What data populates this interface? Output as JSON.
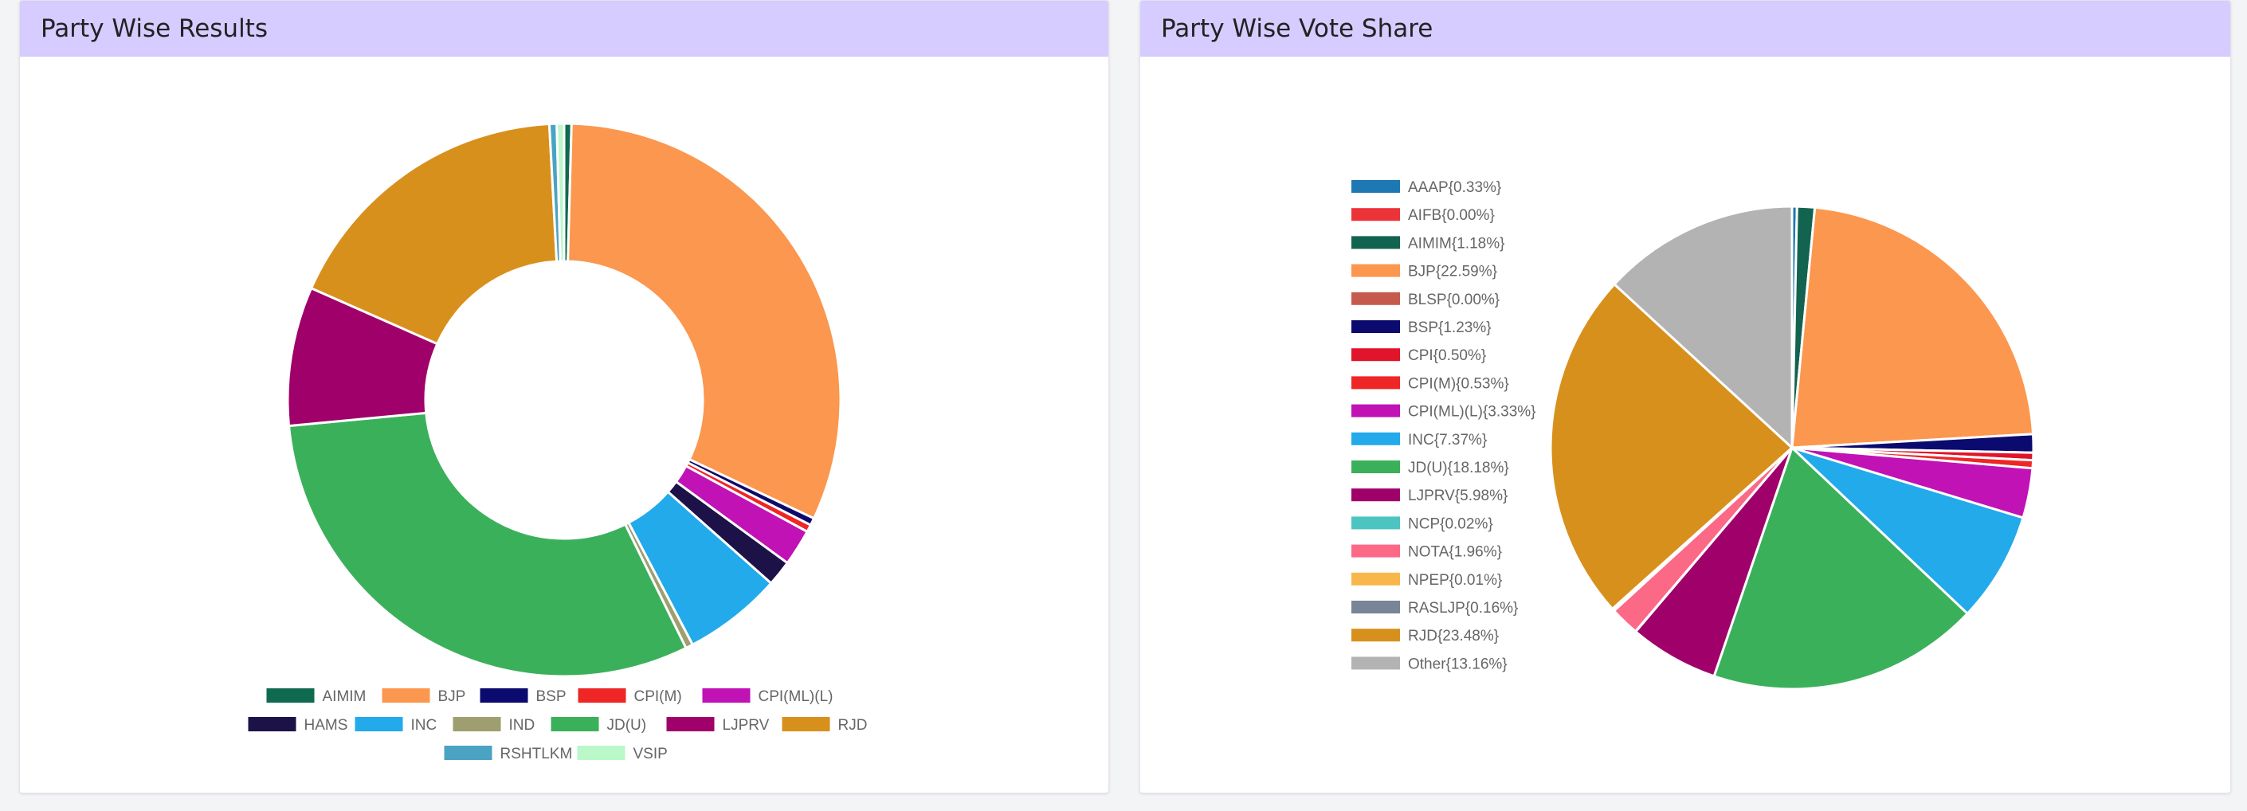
{
  "left_card": {
    "title": "Party Wise Results"
  },
  "right_card": {
    "title": "Party Wise Vote Share"
  },
  "chart_data": [
    {
      "type": "pie",
      "variant": "doughnut",
      "title": "Party Wise Results",
      "legend_position": "bottom",
      "slices": [
        {
          "label": "AIMIM",
          "value": 1,
          "color": "#0f6a50"
        },
        {
          "label": "BJP",
          "value": 74,
          "color": "#fb974f"
        },
        {
          "label": "BSP",
          "value": 1,
          "color": "#0b0a6e"
        },
        {
          "label": "CPI(M)",
          "value": 1,
          "color": "#ee2626"
        },
        {
          "label": "CPI(ML)(L)",
          "value": 5,
          "color": "#c012b5"
        },
        {
          "label": "HAMS",
          "value": 3.5,
          "color": "#1c1248"
        },
        {
          "label": "INC",
          "value": 13.5,
          "color": "#22aaeb"
        },
        {
          "label": "IND",
          "value": 1,
          "color": "#9e9e70"
        },
        {
          "label": "JD(U)",
          "value": 72,
          "color": "#3bb05b"
        },
        {
          "label": "LJPRV",
          "value": 19,
          "color": "#a0006a"
        },
        {
          "label": "RJD",
          "value": 41,
          "color": "#d8901c"
        },
        {
          "label": "RSHTLKM",
          "value": 1,
          "color": "#4ba3c3"
        },
        {
          "label": "VSIP",
          "value": 1,
          "color": "#baf7c9"
        }
      ]
    },
    {
      "type": "pie",
      "title": "Party Wise Vote Share",
      "legend_position": "left",
      "slices": [
        {
          "label": "AAAP",
          "value": 0.33,
          "legend": "AAAP{0.33%}",
          "color": "#1e78b4"
        },
        {
          "label": "AIFB",
          "value": 0.0,
          "legend": "AIFB{0.00%}",
          "color": "#ec3338"
        },
        {
          "label": "AIMIM",
          "value": 1.18,
          "legend": "AIMIM{1.18%}",
          "color": "#12634f"
        },
        {
          "label": "BJP",
          "value": 22.59,
          "legend": "BJP{22.59%}",
          "color": "#fb974f"
        },
        {
          "label": "BLSP",
          "value": 0.0,
          "legend": "BLSP{0.00%}",
          "color": "#c65a4c"
        },
        {
          "label": "BSP",
          "value": 1.23,
          "legend": "BSP{1.23%}",
          "color": "#0b0a6e"
        },
        {
          "label": "CPI",
          "value": 0.5,
          "legend": "CPI{0.50%}",
          "color": "#e0142a"
        },
        {
          "label": "CPI(M)",
          "value": 0.53,
          "legend": "CPI(M){0.53%}",
          "color": "#ee2626"
        },
        {
          "label": "CPI(ML)(L)",
          "value": 3.33,
          "legend": "CPI(ML)(L){3.33%}",
          "color": "#c012b5"
        },
        {
          "label": "INC",
          "value": 7.37,
          "legend": "INC{7.37%}",
          "color": "#22aaeb"
        },
        {
          "label": "JD(U)",
          "value": 18.18,
          "legend": "JD(U){18.18%}",
          "color": "#3bb05b"
        },
        {
          "label": "LJPRV",
          "value": 5.98,
          "legend": "LJPRV{5.98%}",
          "color": "#a0006a"
        },
        {
          "label": "NCP",
          "value": 0.02,
          "legend": "NCP{0.02%}",
          "color": "#4cc4c0"
        },
        {
          "label": "NOTA",
          "value": 1.96,
          "legend": "NOTA{1.96%}",
          "color": "#fb6987"
        },
        {
          "label": "NPEP",
          "value": 0.01,
          "legend": "NPEP{0.01%}",
          "color": "#f8b74b"
        },
        {
          "label": "RASLJP",
          "value": 0.16,
          "legend": "RASLJP{0.16%}",
          "color": "#788596"
        },
        {
          "label": "RJD",
          "value": 23.48,
          "legend": "RJD{23.48%}",
          "color": "#d8901c"
        },
        {
          "label": "Other",
          "value": 13.16,
          "legend": "Other{13.16%}",
          "color": "#b3b3b3"
        }
      ]
    }
  ]
}
